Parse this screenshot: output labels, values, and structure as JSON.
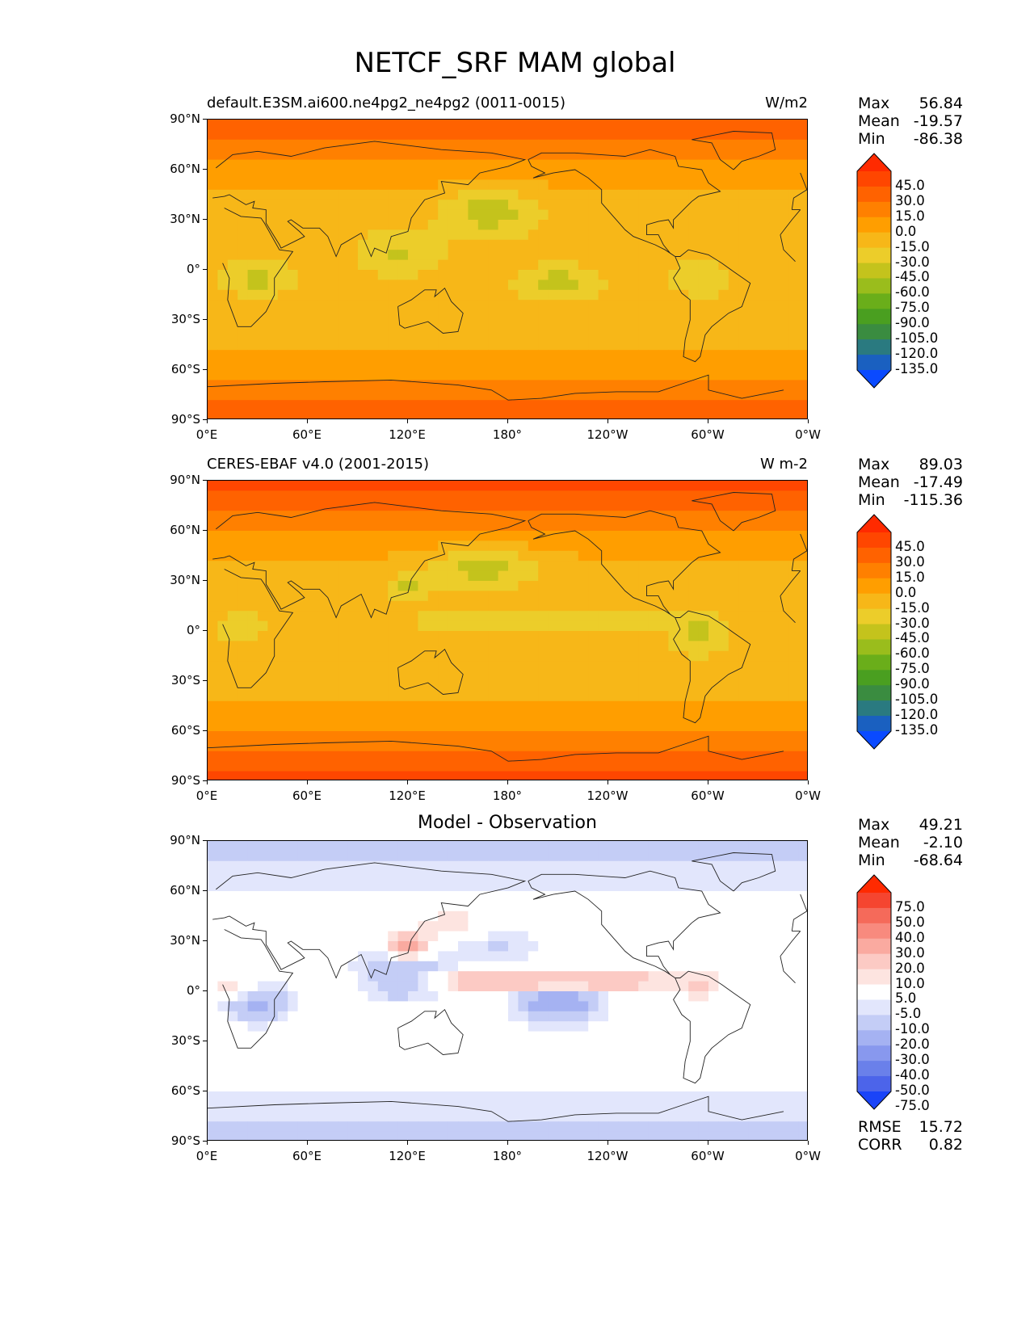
{
  "figure": {
    "title": "NETCF_SRF MAM global"
  },
  "axes": {
    "lat_labels": [
      "90°N",
      "60°N",
      "30°N",
      "0°",
      "30°S",
      "60°S",
      "90°S"
    ],
    "lon_labels": [
      "0°E",
      "60°E",
      "120°E",
      "180°",
      "120°W",
      "60°W",
      "0°W"
    ]
  },
  "panels": [
    {
      "title_left": "default.E3SM.ai600.ne4pg2_ne4pg2 (0011-0015)",
      "title_right": "W/m2",
      "stats": [
        {
          "label": "Max",
          "value": "56.84"
        },
        {
          "label": "Mean",
          "value": "-19.57"
        },
        {
          "label": "Min",
          "value": "-86.38"
        }
      ],
      "colorbar": {
        "labels": [
          "45.0",
          "30.0",
          "15.0",
          "0.0",
          "-15.0",
          "-30.0",
          "-45.0",
          "-60.0",
          "-75.0",
          "-90.0",
          "-105.0",
          "-120.0",
          "-135.0"
        ],
        "colors": [
          "#ff2a00",
          "#ff4600",
          "#ff6200",
          "#ff8000",
          "#ff9e00",
          "#f7b718",
          "#eccd2a",
          "#c4c31c",
          "#9abd1c",
          "#6aae1a",
          "#4a9f20",
          "#3a8c40",
          "#2a7a80",
          "#1a60c0",
          "#0a4aff"
        ]
      }
    },
    {
      "title_left": "CERES-EBAF v4.0 (2001-2015)",
      "title_right": "W m-2",
      "stats": [
        {
          "label": "Max",
          "value": "89.03"
        },
        {
          "label": "Mean",
          "value": "-17.49"
        },
        {
          "label": "Min",
          "value": "-115.36"
        }
      ],
      "colorbar": {
        "labels": [
          "45.0",
          "30.0",
          "15.0",
          "0.0",
          "-15.0",
          "-30.0",
          "-45.0",
          "-60.0",
          "-75.0",
          "-90.0",
          "-105.0",
          "-120.0",
          "-135.0"
        ],
        "colors": [
          "#ff2a00",
          "#ff4600",
          "#ff6200",
          "#ff8000",
          "#ff9e00",
          "#f7b718",
          "#eccd2a",
          "#c4c31c",
          "#9abd1c",
          "#6aae1a",
          "#4a9f20",
          "#3a8c40",
          "#2a7a80",
          "#1a60c0",
          "#0a4aff"
        ]
      }
    },
    {
      "title_center": "Model - Observation",
      "stats": [
        {
          "label": "Max",
          "value": "49.21"
        },
        {
          "label": "Mean",
          "value": "-2.10"
        },
        {
          "label": "Min",
          "value": "-68.64"
        }
      ],
      "extra_stats": [
        {
          "label": "RMSE",
          "value": "15.72"
        },
        {
          "label": "CORR",
          "value": "0.82"
        }
      ],
      "colorbar": {
        "labels": [
          "75.0",
          "50.0",
          "40.0",
          "30.0",
          "20.0",
          "10.0",
          "5.0",
          "-5.0",
          "-10.0",
          "-20.0",
          "-30.0",
          "-40.0",
          "-50.0",
          "-75.0"
        ],
        "colors": [
          "#ff2a00",
          "#f54530",
          "#f56a5a",
          "#f88a7e",
          "#faaaa0",
          "#fccac4",
          "#fde4e0",
          "#ffffff",
          "#e2e6fc",
          "#c4cdf6",
          "#a5b2f2",
          "#8898ee",
          "#6a80ea",
          "#4c64ea",
          "#1a44f8"
        ]
      }
    }
  ]
}
